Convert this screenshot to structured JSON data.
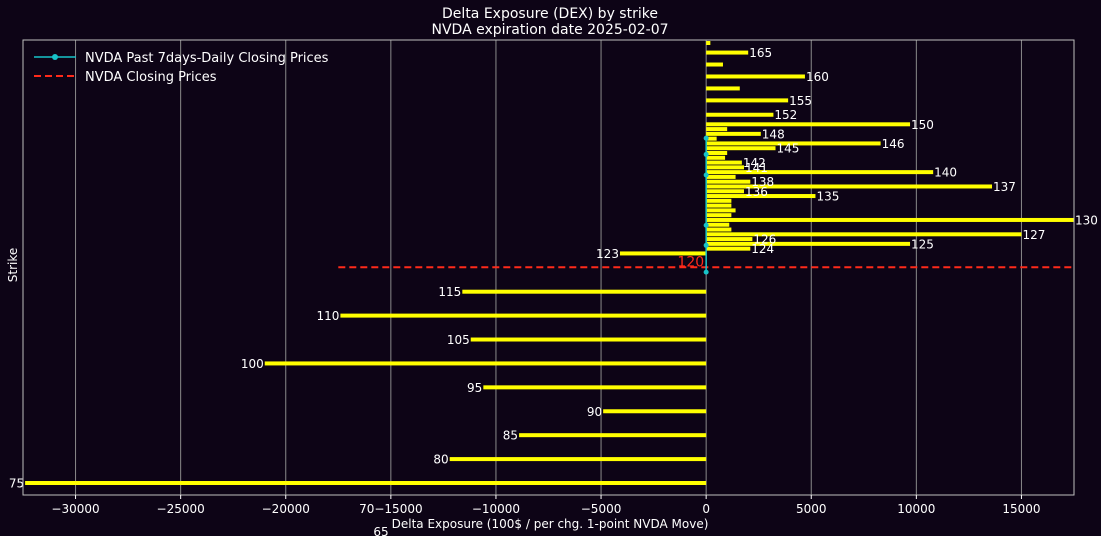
{
  "chart_data": {
    "type": "bar",
    "orientation": "horizontal",
    "title": "Delta Exposure (DEX) by strike",
    "subtitle": "NVDA expiration date 2025-02-07",
    "xlabel": "Delta Exposure (100$ / per chg. 1-point NVDA Move)",
    "ylabel": "Strike",
    "xlim": [
      -32500,
      17500
    ],
    "ylim": [
      75,
      167
    ],
    "x_ticks": [
      -30000,
      -25000,
      -20000,
      -15000,
      -10000,
      -5000,
      0,
      5000,
      10000,
      15000
    ],
    "x_tick_labels": [
      "−30000",
      "−25000",
      "−20000",
      "70−15000",
      "−10000",
      "−5000",
      "0",
      "5000",
      "10000",
      "15000"
    ],
    "stray_labels": [
      "65"
    ],
    "grid": "x",
    "legend_position": "top-left",
    "colors": {
      "background": "#0d0416",
      "bars": "#ffff00",
      "closing_line": "#ff2a1a",
      "past_prices": "#17c3c9",
      "text": "#ffffff",
      "grid": "#8a8a8a"
    },
    "series": [
      {
        "name": "DEX",
        "points": [
          {
            "strike": 75,
            "value": -32400,
            "label": "75"
          },
          {
            "strike": 80,
            "value": -12200,
            "label": "80"
          },
          {
            "strike": 85,
            "value": -8900,
            "label": "85"
          },
          {
            "strike": 90,
            "value": -4900,
            "label": "90"
          },
          {
            "strike": 95,
            "value": -10600,
            "label": "95"
          },
          {
            "strike": 100,
            "value": -21000,
            "label": "100"
          },
          {
            "strike": 105,
            "value": -11200,
            "label": "105"
          },
          {
            "strike": 110,
            "value": -17400,
            "label": "110"
          },
          {
            "strike": 115,
            "value": -11600,
            "label": "115"
          },
          {
            "strike": 123,
            "value": -4100,
            "label": "123"
          },
          {
            "strike": 124,
            "value": 2100,
            "label": "124"
          },
          {
            "strike": 125,
            "value": 9700,
            "label": "125"
          },
          {
            "strike": 126,
            "value": 2200,
            "label": "126"
          },
          {
            "strike": 127,
            "value": 15000,
            "label": "127"
          },
          {
            "strike": 128,
            "value": 1200,
            "label": ""
          },
          {
            "strike": 129,
            "value": 1100,
            "label": ""
          },
          {
            "strike": 130,
            "value": 17500,
            "label": "130"
          },
          {
            "strike": 131,
            "value": 1200,
            "label": ""
          },
          {
            "strike": 132,
            "value": 1400,
            "label": ""
          },
          {
            "strike": 133,
            "value": 1200,
            "label": ""
          },
          {
            "strike": 134,
            "value": 1200,
            "label": ""
          },
          {
            "strike": 135,
            "value": 5200,
            "label": "135"
          },
          {
            "strike": 136,
            "value": 1800,
            "label": "136"
          },
          {
            "strike": 137,
            "value": 13600,
            "label": "137"
          },
          {
            "strike": 138,
            "value": 2100,
            "label": "138"
          },
          {
            "strike": 139,
            "value": 1400,
            "label": ""
          },
          {
            "strike": 140,
            "value": 10800,
            "label": "140"
          },
          {
            "strike": 141,
            "value": 1800,
            "label": "141"
          },
          {
            "strike": 142,
            "value": 1700,
            "label": "142"
          },
          {
            "strike": 143,
            "value": 900,
            "label": ""
          },
          {
            "strike": 144,
            "value": 1000,
            "label": ""
          },
          {
            "strike": 145,
            "value": 3300,
            "label": "145"
          },
          {
            "strike": 146,
            "value": 8300,
            "label": "146"
          },
          {
            "strike": 147,
            "value": 500,
            "label": ""
          },
          {
            "strike": 148,
            "value": 2600,
            "label": "148"
          },
          {
            "strike": 149,
            "value": 1000,
            "label": ""
          },
          {
            "strike": 150,
            "value": 9700,
            "label": "150"
          },
          {
            "strike": 152,
            "value": 3200,
            "label": "152"
          },
          {
            "strike": 155,
            "value": 3900,
            "label": "155"
          },
          {
            "strike": 157.5,
            "value": 1600,
            "label": ""
          },
          {
            "strike": 160,
            "value": 4700,
            "label": "160"
          },
          {
            "strike": 162.5,
            "value": 800,
            "label": ""
          },
          {
            "strike": 165,
            "value": 2000,
            "label": "165"
          },
          {
            "strike": 167,
            "value": 200,
            "label": ""
          }
        ]
      },
      {
        "name": "NVDA Past 7days-Daily Closing Prices",
        "type": "line",
        "points": [
          {
            "x": 0,
            "strike": 119.1
          },
          {
            "x": 0,
            "strike": 124.7
          },
          {
            "x": 0,
            "strike": 128.9
          },
          {
            "x": 0,
            "strike": 139.4
          },
          {
            "x": 0,
            "strike": 143.7
          },
          {
            "x": 0,
            "strike": 147.1
          }
        ]
      },
      {
        "name": "NVDA Closing Prices",
        "type": "hline",
        "strike": 120.1,
        "x_range": [
          -17500,
          17500
        ],
        "label": "120"
      }
    ]
  }
}
